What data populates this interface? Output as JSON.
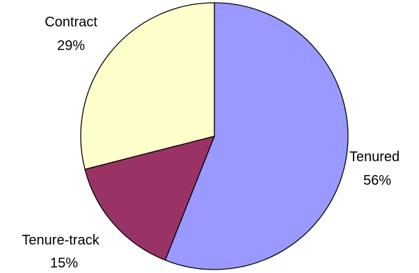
{
  "chart_data": {
    "type": "pie",
    "title": "",
    "start": "12 o'clock",
    "direction": "clockwise",
    "outline_color": "#000000",
    "slices": [
      {
        "label": "Tenured",
        "value": 56,
        "display": "56%",
        "color": "#9999FF"
      },
      {
        "label": "Tenure-track",
        "value": 15,
        "display": "15%",
        "color": "#993366"
      },
      {
        "label": "Contract",
        "value": 29,
        "display": "29%",
        "color": "#FFFFCC"
      }
    ]
  }
}
